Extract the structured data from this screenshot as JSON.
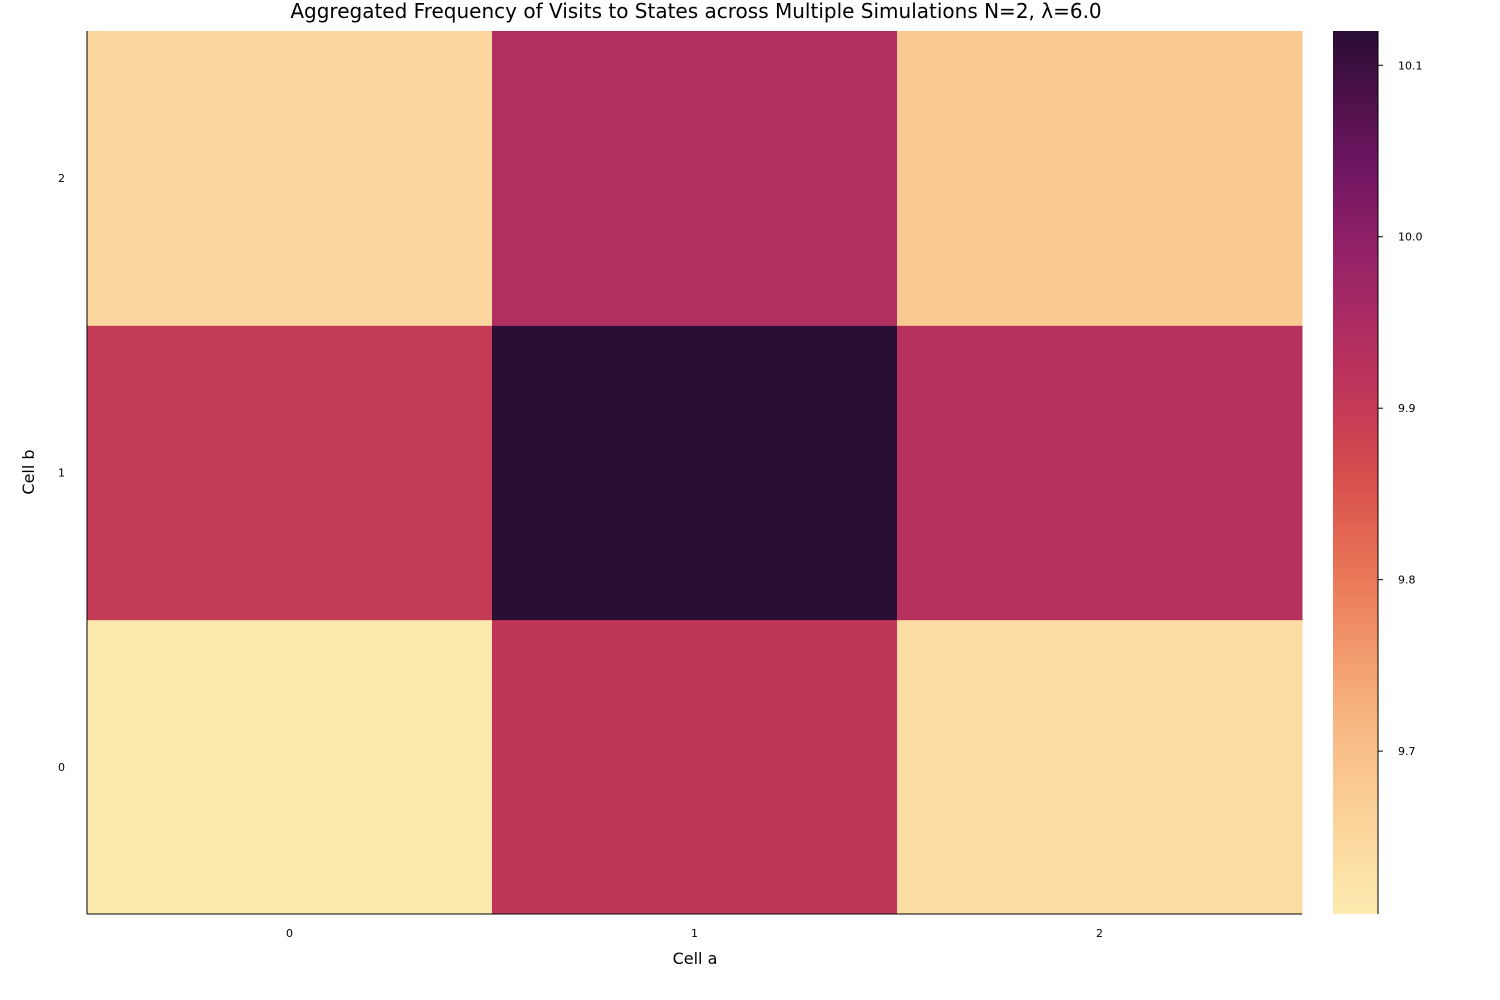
{
  "chart_data": {
    "type": "heatmap",
    "title": "Aggregated Frequency of Visits to States across Multiple Simulations N=2, λ=6.0",
    "xlabel": "Cell a",
    "ylabel": "Cell b",
    "x_categories": [
      "0",
      "1",
      "2"
    ],
    "y_categories": [
      "0",
      "1",
      "2"
    ],
    "values": [
      [
        9.61,
        9.91,
        9.64
      ],
      [
        9.9,
        10.12,
        9.93
      ],
      [
        9.65,
        9.94,
        9.68
      ]
    ],
    "colorbar": {
      "colormap": "magma (reversed)",
      "range": [
        9.605,
        10.12
      ],
      "ticks": [
        9.7,
        9.8,
        9.9,
        10.0,
        10.1
      ],
      "tick_labels": [
        "9.7",
        "9.8",
        "9.9",
        "10.0",
        "10.1"
      ]
    },
    "grid": false
  }
}
